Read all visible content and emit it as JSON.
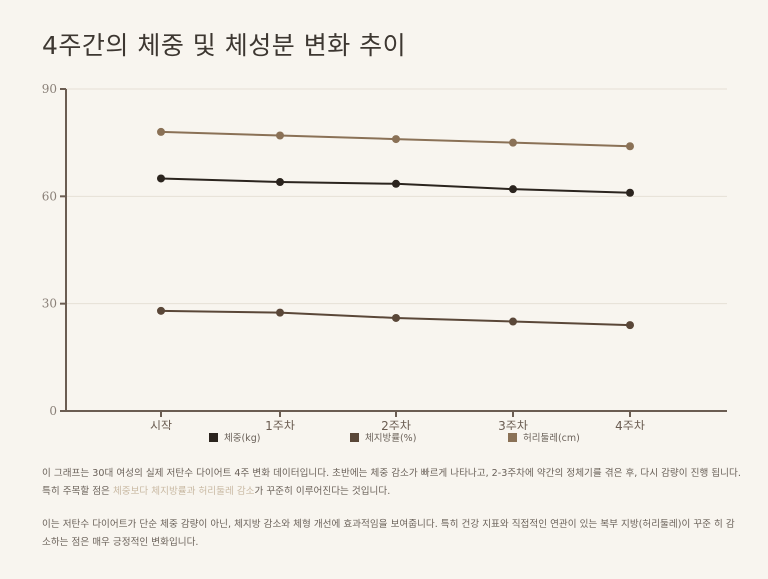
{
  "title": "4주간의 체중 및 체성분 변화 추이",
  "chart_data": {
    "type": "line",
    "title": "4주간의 체중 및 체성분 변화 추이",
    "categories": [
      "시작",
      "1주차",
      "2주차",
      "3주차",
      "4주차"
    ],
    "series": [
      {
        "name": "체중(kg)",
        "color": "#2b241e",
        "values": [
          65,
          64,
          63.5,
          62,
          61
        ]
      },
      {
        "name": "체지방률(%)",
        "color": "#5a4738",
        "values": [
          28,
          27.5,
          26,
          25,
          24
        ]
      },
      {
        "name": "허리둘레(cm)",
        "color": "#8a7156",
        "values": [
          78,
          77,
          76,
          75,
          74
        ]
      }
    ],
    "xlabel": "",
    "ylabel": "",
    "ylim": [
      0,
      90
    ],
    "yticks": [
      0,
      30,
      60,
      90
    ],
    "grid": true,
    "legend_position": "bottom"
  },
  "legend": [
    {
      "label": "체중(kg)",
      "color": "#2b241e"
    },
    {
      "label": "체지방률(%)",
      "color": "#5a4738"
    },
    {
      "label": "허리둘레(cm)",
      "color": "#8a7156"
    }
  ],
  "description": {
    "p1_part1": "이 그래프는 30대 여성의 실제 저탄수 다이어트 4주 변화 데이터입니다. 초반에는 체중 감소가 빠르게 나타나고, 2-3주차에 약간의 정체기를 겪은 후, 다시 감량이 진행",
    "p1_part2": "됩니다. 특히 주목할 점은 ",
    "p1_highlight": "체중보다 체지방률과 허리둘레 감소",
    "p1_part3": "가 꾸준히 이루어진다는 것입니다.",
    "p2_line1": "이는 저탄수 다이어트가 단순 체중 감량이 아닌, 체지방 감소와 체형 개선에 효과적임을 보여줍니다. 특히 건강 지표와 직접적인 연관이 있는 복부 지방(허리둘레)이 꾸준",
    "p2_line2": "히 감소하는 점은 매우 긍정적인 변화입니다."
  }
}
